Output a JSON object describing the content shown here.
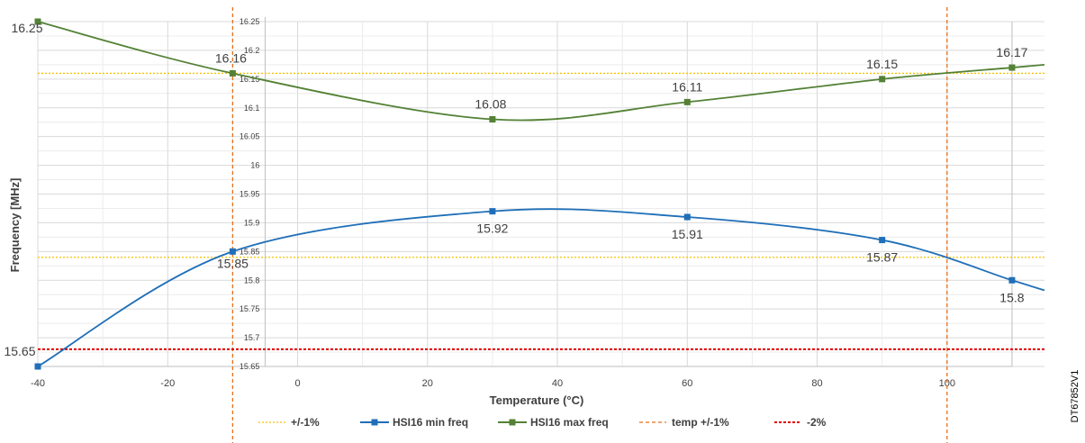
{
  "chart_data": {
    "type": "line",
    "title": "",
    "xlabel": "Temperature (°C)",
    "ylabel": "Frequency [MHz]",
    "xlim": [
      -40,
      115
    ],
    "ylim": [
      15.65,
      16.25
    ],
    "xticks": [
      -40,
      -20,
      0,
      20,
      40,
      60,
      80,
      100
    ],
    "yticks": [
      "15.65",
      "15.7",
      "15.75",
      "15.8",
      "15.85",
      "15.9",
      "15.95",
      "16",
      "16.05",
      "16.1",
      "16.15",
      "16.2",
      "16.25"
    ],
    "grid": true,
    "legend_position": "bottom",
    "series": [
      {
        "name": "+/-1%",
        "kind": "hline",
        "style": "dotted",
        "color": "#F2C200",
        "y": 16.16
      },
      {
        "name": "+/-1%",
        "kind": "hline",
        "style": "dotted",
        "color": "#F2C200",
        "y": 15.84,
        "legend": false
      },
      {
        "name": "HSI16 min freq",
        "kind": "line",
        "color": "#1F6FB8",
        "x": [
          -40,
          -10,
          30,
          60,
          90,
          110
        ],
        "values": [
          15.65,
          15.85,
          15.92,
          15.91,
          15.87,
          15.8
        ],
        "labels": [
          "15.65",
          "15.85",
          "15.92",
          "15.91",
          "15.87",
          "15.8"
        ]
      },
      {
        "name": "HSI16 max freq",
        "kind": "line",
        "color": "#538135",
        "x": [
          -40,
          -10,
          30,
          60,
          90,
          110
        ],
        "values": [
          16.25,
          16.16,
          16.08,
          16.11,
          16.15,
          16.17
        ],
        "labels": [
          "16.25",
          "16.16",
          "16.08",
          "16.11",
          "16.15",
          "16.17"
        ]
      },
      {
        "name": "temp +/-1%",
        "kind": "vline",
        "style": "dashed",
        "color": "#E8701A",
        "x": [
          -10,
          100
        ]
      },
      {
        "name": "-2%",
        "kind": "hline",
        "style": "dotted",
        "color": "#E00000",
        "y": 15.68
      }
    ]
  },
  "side_label": "DT67852V1"
}
